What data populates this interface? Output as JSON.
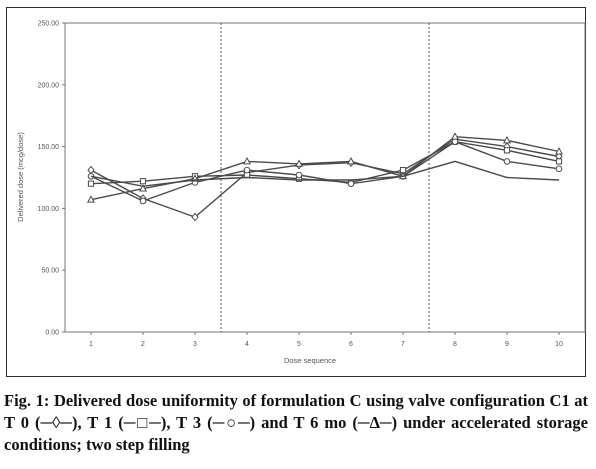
{
  "chart_data": {
    "type": "line",
    "title": "",
    "xlabel": "Dose sequence",
    "ylabel": "Delivered dose (mcg/dose)",
    "x": [
      1,
      2,
      3,
      4,
      5,
      6,
      7,
      8,
      9,
      10
    ],
    "x_tick_labels": [
      "1",
      "2",
      "3",
      "4",
      "5",
      "6",
      "7",
      "8",
      "9",
      "10"
    ],
    "ylim": [
      0,
      250
    ],
    "y_ticks": [
      0,
      50,
      100,
      150,
      200,
      250
    ],
    "y_tick_labels": [
      "0.00",
      "50.00",
      "100.00",
      "150.00",
      "200.00",
      "250.00"
    ],
    "grid": false,
    "reference_lines_x": [
      3.5,
      7.5
    ],
    "series": [
      {
        "marker": "diamond",
        "values": [
          131,
          108,
          93,
          129,
          135,
          137,
          128,
          156,
          150,
          142
        ]
      },
      {
        "marker": "square",
        "values": [
          120,
          122,
          126,
          127,
          124,
          121,
          131,
          154,
          147,
          138
        ]
      },
      {
        "marker": "circle",
        "values": [
          126,
          106,
          121,
          131,
          127,
          120,
          126,
          154,
          138,
          132
        ]
      },
      {
        "marker": "triangle",
        "values": [
          107,
          116,
          124,
          138,
          136,
          138,
          126,
          158,
          155,
          146
        ]
      },
      {
        "marker": "none",
        "values": [
          126,
          118,
          123,
          125,
          123,
          123,
          126,
          138,
          125,
          123
        ]
      }
    ],
    "colors": {
      "line": "#4a4a4a",
      "marker_fill": "#ffffff",
      "frame": "#2b2b2b",
      "dashed": "#555555"
    }
  },
  "caption": {
    "line1": "Fig. 1: Delivered dose uniformity of formulation C using valve",
    "line2": "configuration C1 at T 0 (─◊─), T 1 (─□─), T 3 (─○─) and T 6 mo (─Δ─)",
    "line3": "under accelerated storage conditions; two step filling"
  }
}
